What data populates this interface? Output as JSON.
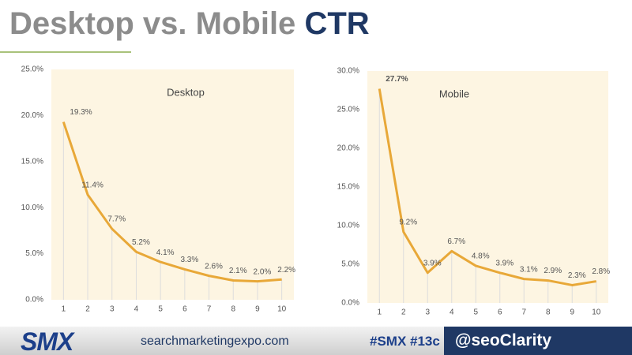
{
  "slide": {
    "title_main": "Desktop vs. Mobile",
    "title_accent": "CTR",
    "footer": {
      "logo": "SMX",
      "url": "searchmarketingexpo.com",
      "hashtags": "#SMX #13c",
      "handle": "@seoClarity"
    }
  },
  "chart_data": [
    {
      "type": "line",
      "categories": [
        "1",
        "2",
        "3",
        "4",
        "5",
        "6",
        "7",
        "8",
        "9",
        "10"
      ],
      "series": [
        {
          "name": "Desktop",
          "color": "#e8a838",
          "values": [
            19.3,
            11.4,
            7.7,
            5.2,
            4.1,
            3.3,
            2.6,
            2.1,
            2.0,
            2.2
          ],
          "value_labels": [
            "19.3%",
            "11.4%",
            "7.7%",
            "5.2%",
            "4.1%",
            "3.3%",
            "2.6%",
            "2.1%",
            "2.0%",
            "2.2%"
          ]
        }
      ],
      "ylim": [
        0,
        25
      ],
      "yticks": [
        {
          "value": 0,
          "label": "0.0%"
        },
        {
          "value": 5,
          "label": "5.0%"
        },
        {
          "value": 10,
          "label": "10.0%"
        },
        {
          "value": 15,
          "label": "15.0%"
        },
        {
          "value": 20,
          "label": "20.0%"
        },
        {
          "value": 25,
          "label": "25.0%"
        }
      ]
    },
    {
      "type": "line",
      "categories": [
        "1",
        "2",
        "3",
        "4",
        "5",
        "6",
        "7",
        "8",
        "9",
        "10"
      ],
      "series": [
        {
          "name": "Mobile",
          "color": "#e8a838",
          "values": [
            27.7,
            9.2,
            3.9,
            6.7,
            4.8,
            3.9,
            3.1,
            2.9,
            2.3,
            2.8
          ],
          "value_labels": [
            "27.7%",
            "9.2%",
            "3.9%",
            "6.7%",
            "4.8%",
            "3.9%",
            "3.1%",
            "2.9%",
            "2.3%",
            "2.8%"
          ]
        }
      ],
      "ylim": [
        0,
        30
      ],
      "yticks": [
        {
          "value": 0,
          "label": "0.0%"
        },
        {
          "value": 5,
          "label": "5.0%"
        },
        {
          "value": 10,
          "label": "10.0%"
        },
        {
          "value": 15,
          "label": "15.0%"
        },
        {
          "value": 20,
          "label": "20.0%"
        },
        {
          "value": 25,
          "label": "25.0%"
        },
        {
          "value": 30,
          "label": "30.0%"
        }
      ]
    }
  ]
}
